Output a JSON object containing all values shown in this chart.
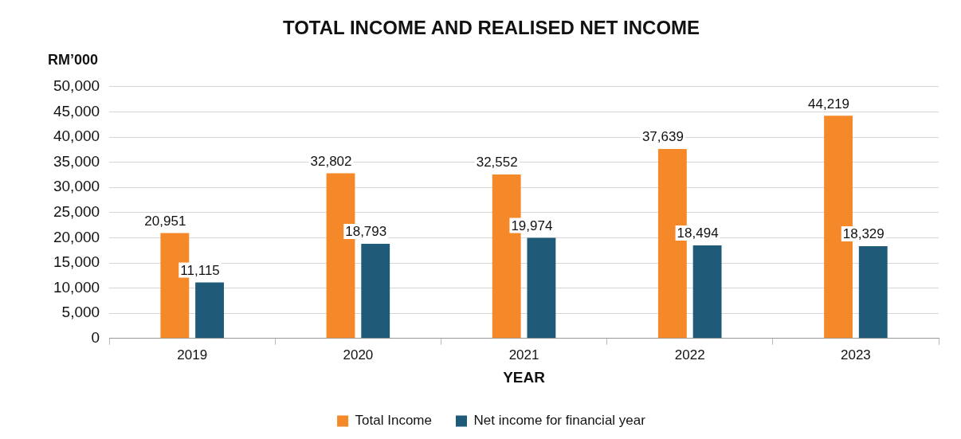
{
  "chart_data": {
    "type": "bar",
    "title": "TOTAL INCOME AND REALISED NET INCOME",
    "xlabel": "YEAR",
    "ylabel": "RM’000",
    "categories": [
      "2019",
      "2020",
      "2021",
      "2022",
      "2023"
    ],
    "series": [
      {
        "name": "Total Income",
        "color": "#f5892a",
        "values": [
          20951,
          32802,
          32552,
          37639,
          44219
        ],
        "value_labels": [
          "20,951",
          "32,802",
          "32,552",
          "37,639",
          "44,219"
        ]
      },
      {
        "name": "Net income for financial year",
        "color": "#1f5b78",
        "values": [
          11115,
          18793,
          19974,
          18494,
          18329
        ],
        "value_labels": [
          "11,115",
          "18,793",
          "19,974",
          "18,494",
          "18,329"
        ]
      }
    ],
    "ylim": [
      0,
      50000
    ],
    "yticks": [
      0,
      {
        "value": 5000,
        "label": "5,000"
      },
      {
        "value": 10000,
        "label": "10,000"
      },
      {
        "value": 15000,
        "label": "15,000"
      },
      {
        "value": 20000,
        "label": "20,000"
      },
      {
        "value": 25000,
        "label": "25,000"
      },
      {
        "value": 30000,
        "label": "30,000"
      },
      {
        "value": 35000,
        "label": "35,000"
      },
      {
        "value": 40000,
        "label": "40,000"
      },
      {
        "value": 45000,
        "label": "45,000"
      },
      {
        "value": 50000,
        "label": "50,000"
      }
    ],
    "grid": "y",
    "legend": "bottom"
  }
}
